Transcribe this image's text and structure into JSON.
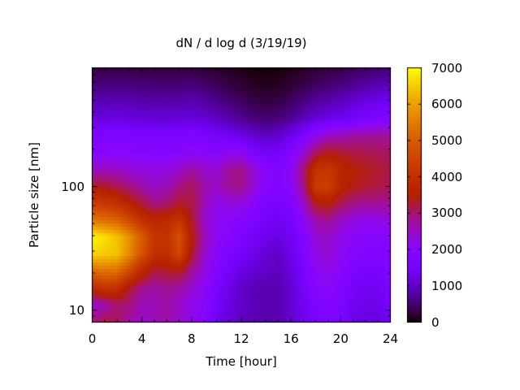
{
  "background": "#ffffff",
  "text_color": "#000000",
  "chart_data": {
    "type": "heatmap",
    "title": "dN / d log d (3/19/19)",
    "xlabel": "Time [hour]",
    "ylabel": "Particle size [nm]",
    "x_range": [
      0,
      24
    ],
    "x_major_tick_values": [
      0,
      4,
      8,
      12,
      16,
      20,
      24
    ],
    "x_tick_labels": [
      "0",
      "4",
      "8",
      "12",
      "16",
      "20",
      "24"
    ],
    "x_minor_step": 1,
    "y_scale": "log",
    "y_range": [
      8,
      910
    ],
    "y_major_tick_values": [
      10,
      100
    ],
    "y_tick_labels": [
      "10",
      "100"
    ],
    "y_minor_tick_values": [
      9,
      20,
      30,
      40,
      50,
      60,
      70,
      80,
      90,
      200,
      300,
      400,
      500,
      600,
      700,
      800,
      900
    ],
    "z_range": [
      0,
      7000
    ],
    "colorbar_tick_values": [
      0,
      1000,
      2000,
      3000,
      4000,
      5000,
      6000,
      7000
    ],
    "colorbar_tick_labels": [
      "0",
      "1000",
      "2000",
      "3000",
      "4000",
      "5000",
      "6000",
      "7000"
    ],
    "palette": "gnuplot rgbformulae 7,5,15 (black-violet-magenta-red-orange-yellow)",
    "legend_position": "right-colorbar",
    "grid": false,
    "hours": [
      0,
      1,
      2,
      3,
      4,
      5,
      6,
      7,
      8,
      9,
      10,
      11,
      12,
      13,
      14,
      15,
      16,
      17,
      18,
      19,
      20,
      21,
      22,
      23,
      24
    ],
    "sizes_nm": [
      865,
      633,
      463,
      339,
      248,
      181,
      133,
      97,
      71,
      52,
      38,
      28,
      20.5,
      15,
      11,
      8
    ],
    "values": [
      [
        280,
        300,
        310,
        290,
        270,
        260,
        250,
        260,
        280,
        230,
        180,
        130,
        90,
        45,
        30,
        45,
        90,
        150,
        220,
        260,
        310,
        370,
        430,
        490,
        520
      ],
      [
        550,
        570,
        580,
        560,
        540,
        520,
        510,
        520,
        550,
        480,
        390,
        310,
        230,
        150,
        120,
        150,
        230,
        330,
        430,
        500,
        580,
        670,
        760,
        840,
        880
      ],
      [
        850,
        870,
        880,
        860,
        830,
        810,
        800,
        820,
        860,
        780,
        650,
        530,
        420,
        320,
        280,
        320,
        430,
        580,
        750,
        850,
        950,
        1080,
        1200,
        1300,
        1350
      ],
      [
        1150,
        1180,
        1200,
        1170,
        1130,
        1100,
        1090,
        1110,
        1160,
        1080,
        950,
        820,
        680,
        550,
        500,
        550,
        700,
        900,
        1100,
        1250,
        1350,
        1500,
        1650,
        1750,
        1800
      ],
      [
        1700,
        1750,
        1780,
        1730,
        1680,
        1650,
        1640,
        1680,
        1750,
        1650,
        1500,
        1400,
        1250,
        1050,
        950,
        1050,
        1300,
        1700,
        2200,
        2500,
        2600,
        2700,
        2750,
        2800,
        2800
      ],
      [
        1900,
        1950,
        1980,
        1950,
        1900,
        1880,
        1880,
        1950,
        2050,
        2000,
        1950,
        2100,
        2100,
        1700,
        1450,
        1500,
        1800,
        2400,
        3100,
        3400,
        3300,
        3200,
        3150,
        3100,
        3050
      ],
      [
        2500,
        2550,
        2500,
        2400,
        2300,
        2250,
        2300,
        2500,
        2700,
        2500,
        2400,
        2800,
        2900,
        2400,
        1900,
        1800,
        2100,
        3000,
        4000,
        4200,
        3700,
        3500,
        3400,
        3300,
        3200
      ],
      [
        3400,
        3300,
        3100,
        2900,
        2700,
        2500,
        2600,
        2900,
        3100,
        2700,
        2500,
        2800,
        2850,
        2400,
        1900,
        1800,
        2000,
        2900,
        4300,
        4400,
        3700,
        3400,
        3300,
        3200,
        3100
      ],
      [
        4300,
        4200,
        4000,
        3600,
        3200,
        2900,
        3000,
        3300,
        3200,
        2600,
        2200,
        2300,
        2300,
        2000,
        1700,
        1600,
        1800,
        2500,
        3400,
        3500,
        3100,
        2900,
        2800,
        2800,
        2800
      ],
      [
        5400,
        5300,
        5100,
        4600,
        4000,
        3700,
        3800,
        4100,
        3300,
        2500,
        2100,
        2000,
        1900,
        1700,
        1500,
        1400,
        1600,
        2100,
        2700,
        2800,
        2500,
        2300,
        2200,
        2200,
        2300
      ],
      [
        6900,
        6700,
        6400,
        5800,
        5000,
        4200,
        4100,
        4800,
        3500,
        2600,
        2100,
        1900,
        1700,
        1500,
        1300,
        1200,
        1400,
        1800,
        2400,
        2500,
        2200,
        2000,
        1900,
        1900,
        2000
      ],
      [
        6600,
        6500,
        6400,
        5700,
        4800,
        4000,
        3900,
        4600,
        3300,
        2500,
        2000,
        1700,
        1500,
        1300,
        1100,
        1000,
        1300,
        1700,
        2300,
        2400,
        2100,
        1900,
        1800,
        1800,
        1900
      ],
      [
        5200,
        5400,
        5300,
        4600,
        3800,
        3200,
        3300,
        3400,
        2800,
        2300,
        1800,
        1500,
        1200,
        1100,
        1000,
        950,
        1200,
        1600,
        2100,
        2200,
        1900,
        1700,
        1600,
        1600,
        1800
      ],
      [
        3800,
        4200,
        4000,
        3300,
        2800,
        2700,
        2800,
        2700,
        2400,
        2100,
        1600,
        1300,
        1000,
        900,
        850,
        850,
        1100,
        1500,
        1900,
        2000,
        1800,
        1500,
        1400,
        1400,
        1700
      ],
      [
        2400,
        2600,
        3000,
        2900,
        2600,
        2600,
        2700,
        2500,
        2200,
        2000,
        1500,
        1200,
        1000,
        900,
        850,
        850,
        1100,
        1400,
        1700,
        1800,
        1700,
        1400,
        1300,
        1300,
        1600
      ],
      [
        3000,
        3200,
        3100,
        2700,
        2500,
        2600,
        2700,
        2500,
        2200,
        1900,
        1400,
        1100,
        950,
        880,
        830,
        830,
        1050,
        1300,
        1600,
        1700,
        1600,
        1300,
        1200,
        1200,
        1500
      ]
    ]
  }
}
